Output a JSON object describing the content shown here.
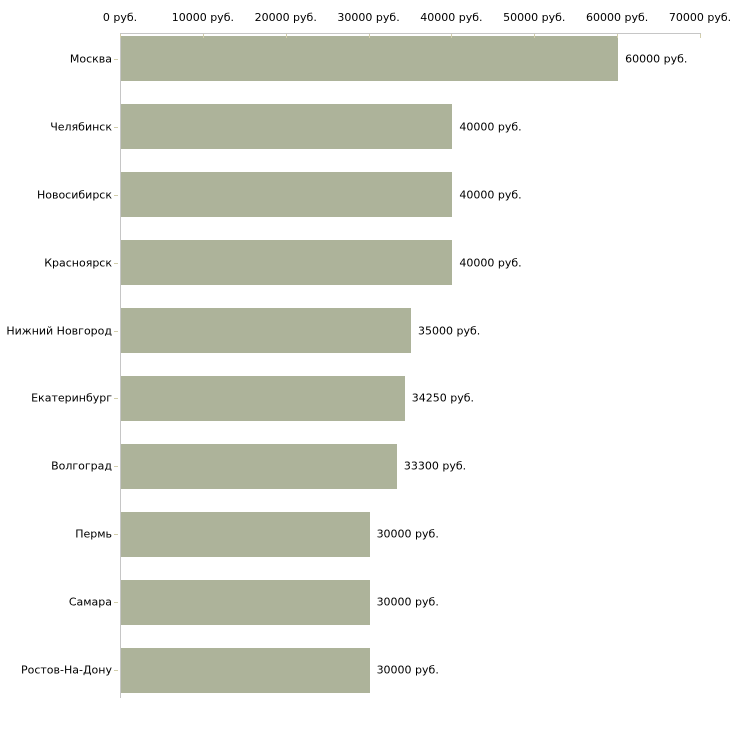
{
  "chart_data": {
    "type": "bar",
    "orientation": "horizontal",
    "title": "",
    "xlabel": "",
    "ylabel": "",
    "xlim": [
      0,
      70000
    ],
    "grid": false,
    "legend": null,
    "categories": [
      "Москва",
      "Челябинск",
      "Новосибирск",
      "Красноярск",
      "Нижний Новгород",
      "Екатеринбург",
      "Волгоград",
      "Пермь",
      "Самара",
      "Ростов-На-Дону"
    ],
    "values": [
      60000,
      40000,
      40000,
      40000,
      35000,
      34250,
      33300,
      30000,
      30000,
      30000
    ],
    "value_labels": [
      "60000 руб.",
      "40000 руб.",
      "40000 руб.",
      "40000 руб.",
      "35000 руб.",
      "34250 руб.",
      "33300 руб.",
      "30000 руб.",
      "30000 руб.",
      "30000 руб."
    ],
    "x_ticks": [
      {
        "value": 0,
        "label": "0 руб."
      },
      {
        "value": 10000,
        "label": "10000 руб."
      },
      {
        "value": 20000,
        "label": "20000 руб."
      },
      {
        "value": 30000,
        "label": "30000 руб."
      },
      {
        "value": 40000,
        "label": "40000 руб."
      },
      {
        "value": 50000,
        "label": "50000 руб."
      },
      {
        "value": 60000,
        "label": "60000 руб."
      },
      {
        "value": 70000,
        "label": "70000 руб."
      }
    ],
    "colors": {
      "bar": "#adb39a",
      "axis": "#c6c6c6",
      "tick": "#d2ceac",
      "text": "#000000",
      "background": "#ffffff"
    }
  }
}
